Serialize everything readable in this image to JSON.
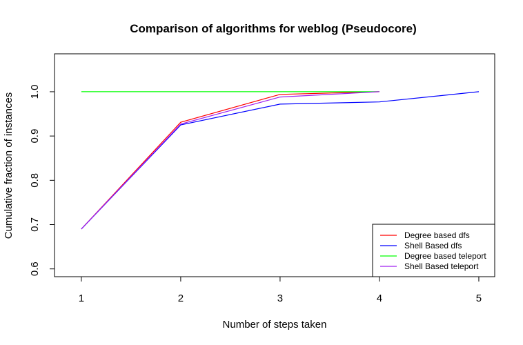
{
  "chart_data": {
    "type": "line",
    "title": "Comparison of algorithms for weblog (Pseudocore)",
    "xlabel": "Number of steps taken",
    "ylabel": "Cumulative fraction of instances",
    "xlim": [
      0.73,
      5.16
    ],
    "ylim": [
      0.5824,
      1.0856
    ],
    "x_ticks": [
      "1",
      "2",
      "3",
      "4",
      "5"
    ],
    "y_ticks": [
      "0.6",
      "0.7",
      "0.8",
      "0.9",
      "1.0"
    ],
    "legend_position": "bottom-right",
    "grid": false,
    "series": [
      {
        "name": "Degree based dfs",
        "color": "#ff0000",
        "x": [
          1,
          2,
          3,
          4
        ],
        "y": [
          0.69,
          0.931,
          0.994,
          1.0
        ]
      },
      {
        "name": "Shell Based dfs",
        "color": "#0000ff",
        "x": [
          1,
          2,
          3,
          4,
          5
        ],
        "y": [
          0.69,
          0.925,
          0.972,
          0.977,
          1.0
        ]
      },
      {
        "name": "Degree based teleport",
        "color": "#00ff00",
        "x": [
          1,
          2,
          3,
          4
        ],
        "y": [
          1.0,
          1.0,
          1.0,
          1.0
        ]
      },
      {
        "name": "Shell Based teleport",
        "color": "#a020f0",
        "x": [
          1,
          2,
          3,
          4
        ],
        "y": [
          0.69,
          0.927,
          0.988,
          1.0
        ]
      }
    ]
  }
}
